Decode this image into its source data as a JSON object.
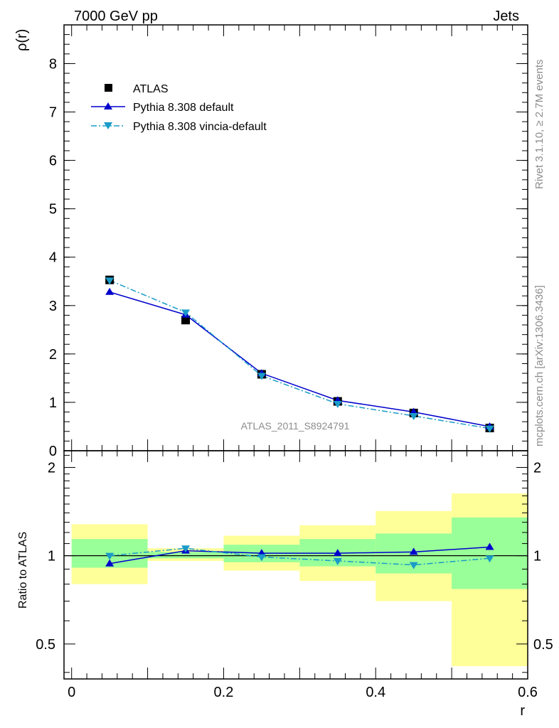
{
  "header": {
    "left": "7000 GeV pp",
    "right": "Jets"
  },
  "side_labels": {
    "rivet": "Rivet 3.1.10, ≥ 2.7M events",
    "mcplots": "mcplots.cern.ch [arXiv:1306.3436]"
  },
  "analysis_id": "ATLAS_2011_S8924791",
  "chart_data": [
    {
      "type": "line",
      "panel": "main",
      "ylabel": "ρ(r)",
      "xlabel": "",
      "xlim": [
        -0.01,
        0.6
      ],
      "ylim": [
        0,
        8.8
      ],
      "y_ticks": [
        "0",
        "1",
        "2",
        "3",
        "4",
        "5",
        "6",
        "7",
        "8"
      ],
      "legend_placement": "top-left",
      "x": [
        0.05,
        0.15,
        0.25,
        0.35,
        0.45,
        0.55
      ],
      "series": [
        {
          "name": "ATLAS",
          "style": "data-square",
          "color": "#000000",
          "values": [
            3.53,
            2.7,
            1.58,
            1.02,
            0.78,
            0.47
          ]
        },
        {
          "name": "Pythia 8.308 default",
          "style": "solid-triangle-up",
          "color": "#0000cc",
          "values": [
            3.28,
            2.81,
            1.6,
            1.04,
            0.8,
            0.5
          ]
        },
        {
          "name": "Pythia 8.308 vincia-default",
          "style": "dashdot-triangle-down",
          "color": "#1a9bc8",
          "values": [
            3.52,
            2.86,
            1.55,
            0.97,
            0.72,
            0.46
          ]
        }
      ]
    },
    {
      "type": "line",
      "panel": "ratio",
      "ylabel": "Ratio to ATLAS",
      "xlabel": "r",
      "xlim": [
        -0.01,
        0.6
      ],
      "ylim": [
        0.38,
        2.28
      ],
      "y_scale": "log",
      "x_ticks": [
        "0",
        "0.2",
        "0.4",
        "0.6"
      ],
      "y_ticks": [
        "0.5",
        "1",
        "2"
      ],
      "bins": [
        [
          0.0,
          0.1
        ],
        [
          0.1,
          0.2
        ],
        [
          0.2,
          0.3
        ],
        [
          0.3,
          0.4
        ],
        [
          0.4,
          0.5
        ],
        [
          0.5,
          0.6
        ]
      ],
      "band_stat": [
        [
          0.91,
          1.14
        ],
        [
          0.98,
          1.03
        ],
        [
          0.95,
          1.09
        ],
        [
          0.92,
          1.14
        ],
        [
          0.87,
          1.19
        ],
        [
          0.77,
          1.35
        ]
      ],
      "band_total": [
        [
          0.8,
          1.28
        ],
        [
          0.96,
          1.06
        ],
        [
          0.89,
          1.17
        ],
        [
          0.82,
          1.27
        ],
        [
          0.7,
          1.42
        ],
        [
          0.42,
          1.63
        ]
      ],
      "x": [
        0.05,
        0.15,
        0.25,
        0.35,
        0.45,
        0.55
      ],
      "series": [
        {
          "name": "Pythia 8.308 default",
          "color": "#0000cc",
          "values": [
            0.94,
            1.04,
            1.02,
            1.02,
            1.03,
            1.07
          ]
        },
        {
          "name": "Pythia 8.308 vincia-default",
          "color": "#1a9bc8",
          "values": [
            1.0,
            1.06,
            0.99,
            0.96,
            0.93,
            0.98
          ]
        }
      ]
    }
  ],
  "colors": {
    "band_stat": "#99ff99",
    "band_total": "#ffff99"
  }
}
